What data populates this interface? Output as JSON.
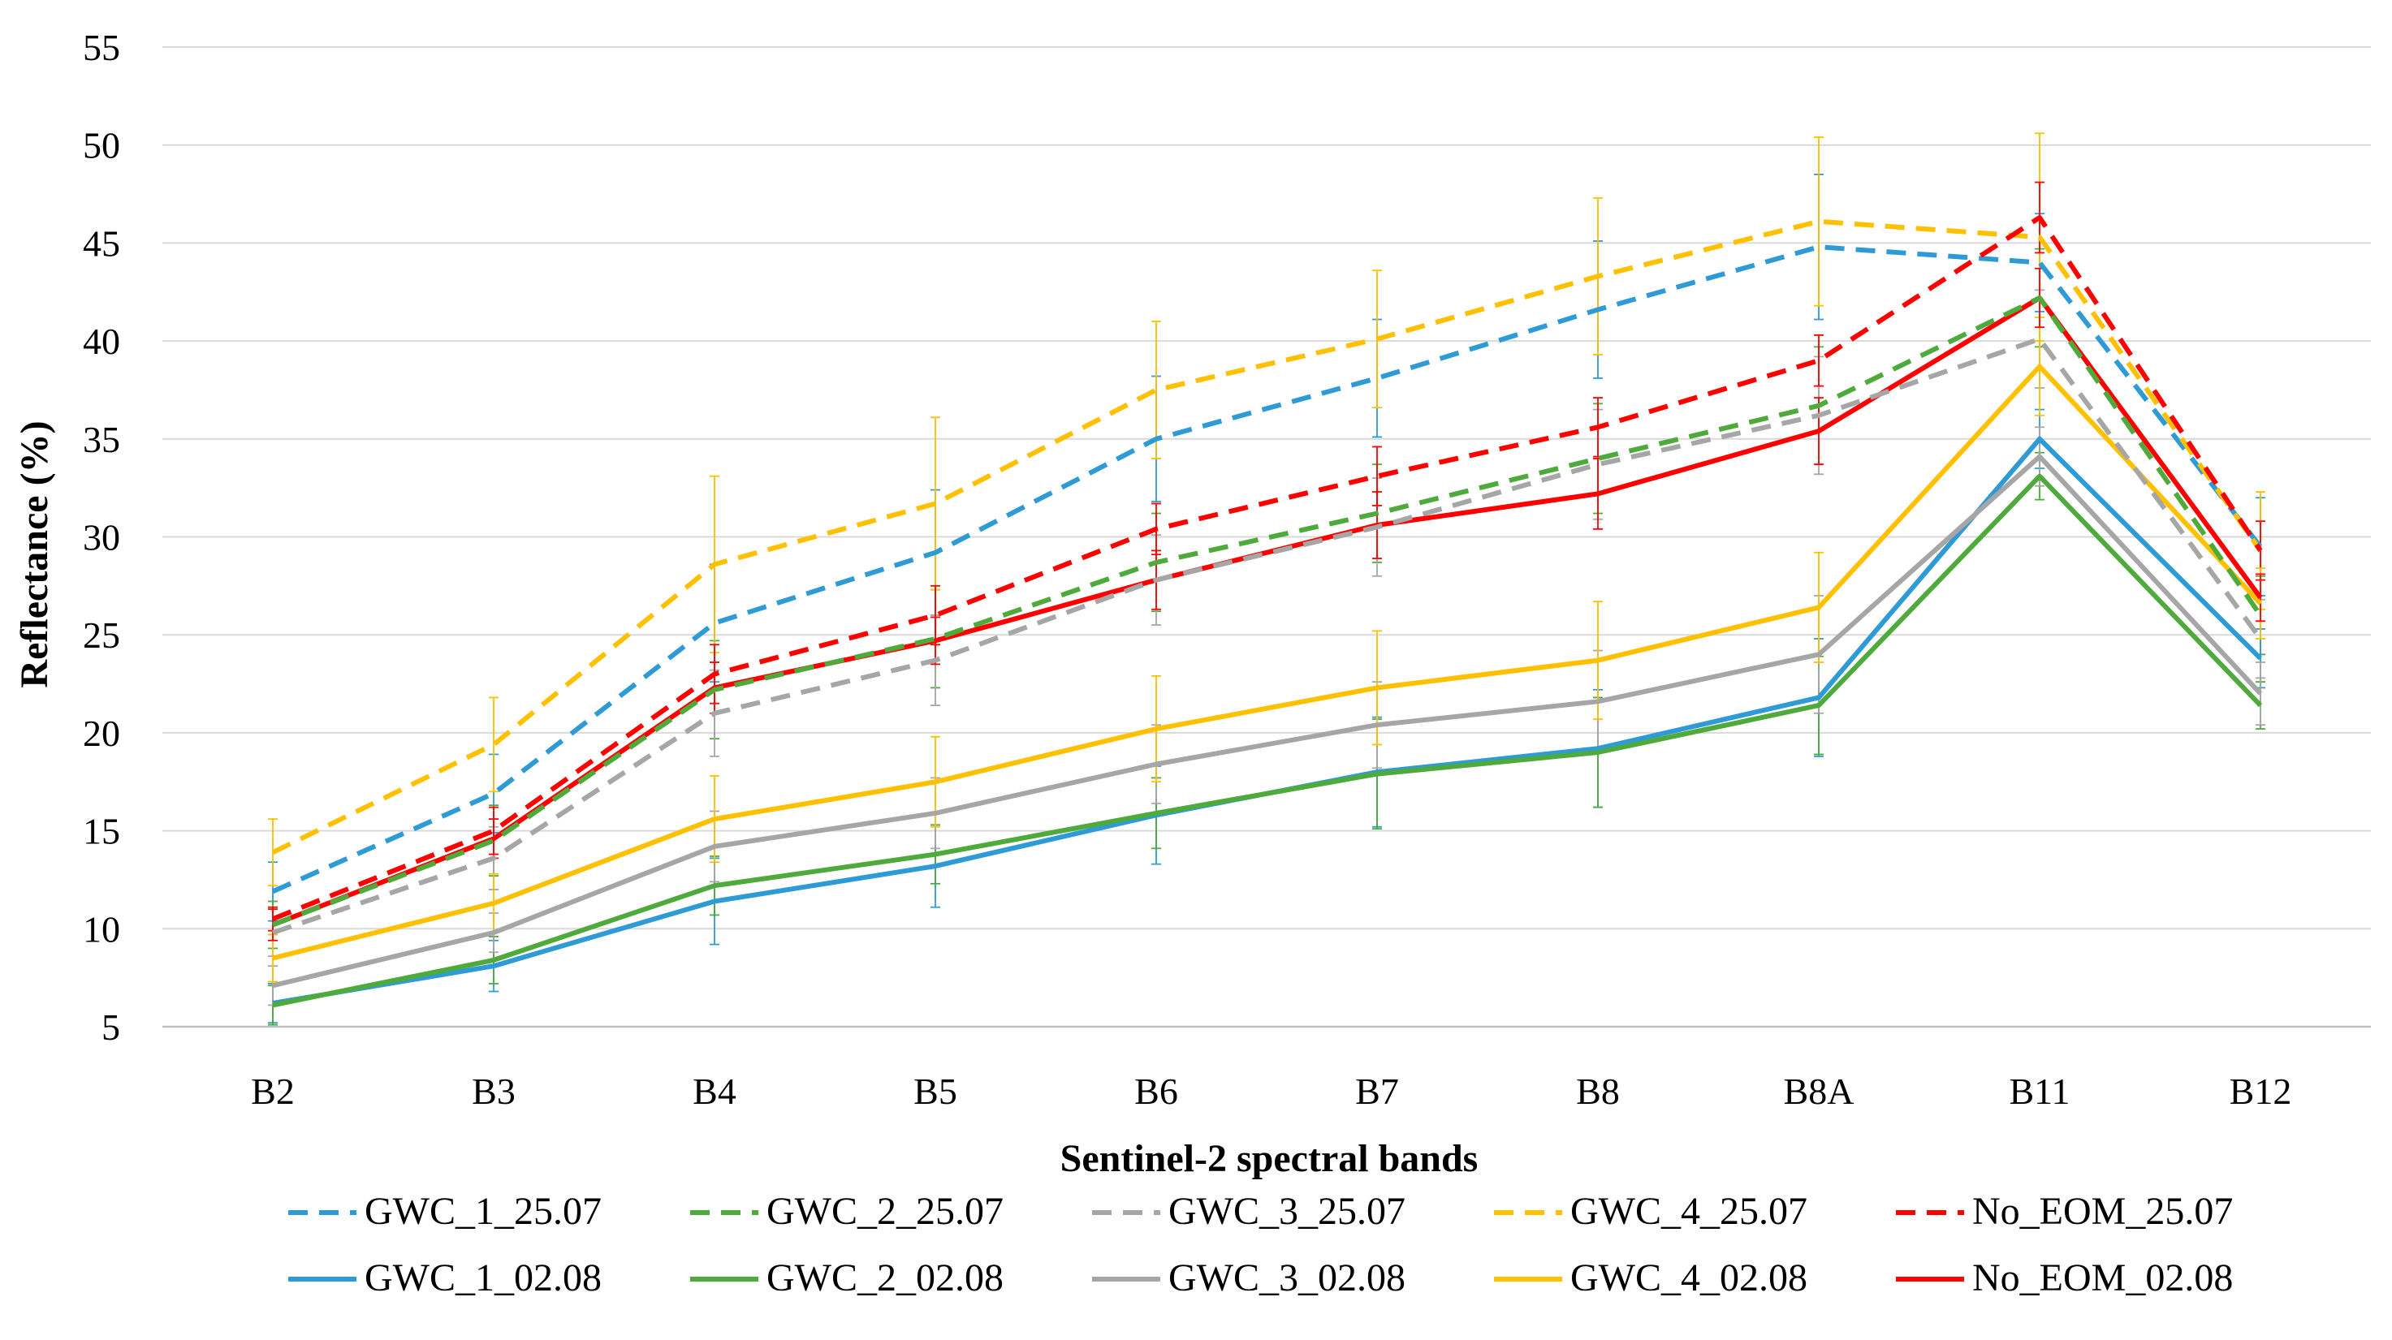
{
  "chart_data": {
    "type": "line",
    "title": "",
    "xlabel": "Sentinel-2 spectral bands",
    "ylabel": "Reflectance (%)",
    "ylim": [
      5,
      55
    ],
    "yticks": [
      5,
      10,
      15,
      20,
      25,
      30,
      35,
      40,
      45,
      50,
      55
    ],
    "grid": true,
    "legend_position": "bottom",
    "categories": [
      "B2",
      "B3",
      "B4",
      "B5",
      "B6",
      "B7",
      "B8",
      "B8A",
      "B11",
      "B12"
    ],
    "series": [
      {
        "name": "GWC_1_25.07",
        "color": "#2e9bd6",
        "dash": "dashed",
        "values": [
          11.9,
          16.9,
          25.6,
          29.2,
          35.0,
          38.1,
          41.6,
          44.8,
          44.0,
          29.5
        ],
        "errors": [
          1.5,
          2.0,
          3.0,
          3.2,
          3.2,
          3.0,
          3.5,
          3.7,
          2.5,
          2.5
        ]
      },
      {
        "name": "GWC_2_25.07",
        "color": "#4faa3c",
        "dash": "dashed",
        "values": [
          10.2,
          14.5,
          22.2,
          24.8,
          28.7,
          31.2,
          34.0,
          36.7,
          42.2,
          26.0
        ],
        "errors": [
          1.2,
          1.8,
          2.5,
          2.5,
          2.5,
          2.5,
          2.8,
          3.0,
          2.5,
          2.0
        ]
      },
      {
        "name": "GWC_3_25.07",
        "color": "#a6a6a6",
        "dash": "dashed",
        "values": [
          9.8,
          13.6,
          21.0,
          23.7,
          27.8,
          30.5,
          33.7,
          36.2,
          40.1,
          24.8
        ],
        "errors": [
          1.2,
          1.6,
          2.2,
          2.3,
          2.3,
          2.5,
          2.8,
          3.0,
          2.5,
          2.0
        ]
      },
      {
        "name": "GWC_4_25.07",
        "color": "#ffc000",
        "dash": "dashed",
        "values": [
          13.9,
          19.4,
          28.6,
          31.7,
          37.5,
          40.1,
          43.3,
          46.1,
          45.3,
          29.3
        ],
        "errors": [
          1.7,
          2.4,
          4.5,
          4.4,
          3.5,
          3.5,
          4.0,
          4.3,
          5.3,
          3.0
        ]
      },
      {
        "name": "No_EOM_25.07",
        "color": "#ff0000",
        "dash": "dashed",
        "values": [
          10.5,
          15.0,
          23.0,
          26.0,
          30.4,
          33.1,
          35.6,
          39.0,
          46.3,
          29.3
        ],
        "errors": [
          0.6,
          1.2,
          1.5,
          1.5,
          1.3,
          1.5,
          1.5,
          1.3,
          1.8,
          1.5
        ]
      },
      {
        "name": "GWC_1_02.08",
        "color": "#2e9bd6",
        "dash": "solid",
        "values": [
          6.2,
          8.1,
          11.4,
          13.2,
          15.8,
          18.0,
          19.2,
          21.8,
          35.0,
          23.8
        ],
        "errors": [
          1.0,
          1.3,
          2.2,
          2.1,
          2.5,
          2.8,
          3.0,
          3.0,
          1.5,
          1.5
        ]
      },
      {
        "name": "GWC_2_02.08",
        "color": "#4faa3c",
        "dash": "solid",
        "values": [
          6.1,
          8.4,
          12.2,
          13.8,
          15.9,
          17.9,
          19.0,
          21.4,
          33.1,
          21.4
        ],
        "errors": [
          1.0,
          1.2,
          1.5,
          1.5,
          1.8,
          2.8,
          2.8,
          2.5,
          1.2,
          1.2
        ]
      },
      {
        "name": "GWC_3_02.08",
        "color": "#a6a6a6",
        "dash": "solid",
        "values": [
          7.1,
          9.8,
          14.2,
          15.9,
          18.4,
          20.4,
          21.6,
          24.0,
          34.1,
          22.0
        ],
        "errors": [
          1.0,
          1.0,
          1.8,
          1.8,
          2.0,
          2.2,
          2.6,
          3.0,
          1.5,
          1.6
        ]
      },
      {
        "name": "GWC_4_02.08",
        "color": "#ffc000",
        "dash": "solid",
        "values": [
          8.5,
          11.3,
          15.6,
          17.5,
          20.2,
          22.3,
          23.7,
          26.4,
          38.7,
          26.6
        ],
        "errors": [
          1.2,
          1.5,
          2.2,
          2.3,
          2.7,
          2.9,
          3.0,
          2.8,
          2.5,
          1.8
        ]
      },
      {
        "name": "No_EOM_02.08",
        "color": "#ff0000",
        "dash": "solid",
        "values": [
          10.2,
          14.6,
          22.3,
          24.7,
          27.8,
          30.6,
          32.2,
          35.4,
          42.2,
          26.9
        ],
        "errors": [
          0.8,
          1.0,
          1.3,
          1.2,
          1.5,
          1.7,
          1.8,
          1.7,
          1.5,
          1.2
        ]
      }
    ]
  }
}
